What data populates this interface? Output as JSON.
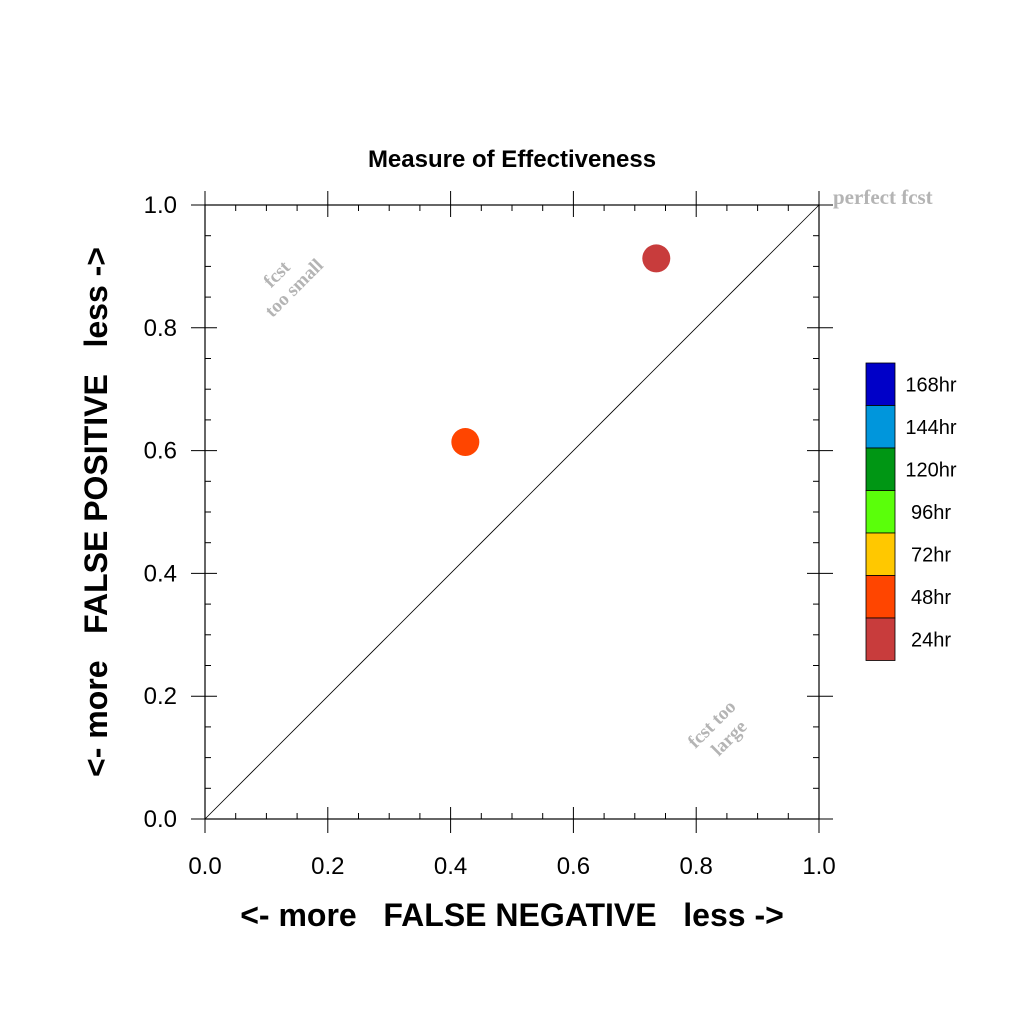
{
  "chart_data": {
    "type": "scatter",
    "title": "Measure of Effectiveness",
    "xlabel": "<- more   FALSE NEGATIVE   less ->",
    "ylabel": "<- more   FALSE POSITIVE   less ->",
    "xlim": [
      0.0,
      1.0
    ],
    "ylim": [
      0.0,
      1.0
    ],
    "xticks": [
      "0.0",
      "0.2",
      "0.4",
      "0.6",
      "0.8",
      "1.0"
    ],
    "yticks": [
      "0.0",
      "0.2",
      "0.4",
      "0.6",
      "0.8",
      "1.0"
    ],
    "grid": false,
    "diagonal_line": {
      "from": [
        0.0,
        0.0
      ],
      "to": [
        1.0,
        1.0
      ]
    },
    "annotations": {
      "perfect": "perfect fcst",
      "too_small": [
        "fcst",
        "too small"
      ],
      "too_large": [
        "fcst too",
        "large"
      ]
    },
    "points": [
      {
        "label": "24hr",
        "x": 0.735,
        "y": 0.913,
        "color": "#c83c3c"
      },
      {
        "label": "48hr",
        "x": 0.424,
        "y": 0.614,
        "color": "#ff4500"
      }
    ],
    "legend": {
      "placement": "right",
      "items": [
        {
          "label": "168hr",
          "color": "#0000c8"
        },
        {
          "label": "144hr",
          "color": "#0096dc"
        },
        {
          "label": "120hr",
          "color": "#009614"
        },
        {
          "label": "96hr",
          "color": "#5aff0a"
        },
        {
          "label": "72hr",
          "color": "#ffc800"
        },
        {
          "label": "48hr",
          "color": "#ff4500"
        },
        {
          "label": "24hr",
          "color": "#c83c3c"
        }
      ]
    },
    "annotation_color": "#b4b4b4"
  }
}
